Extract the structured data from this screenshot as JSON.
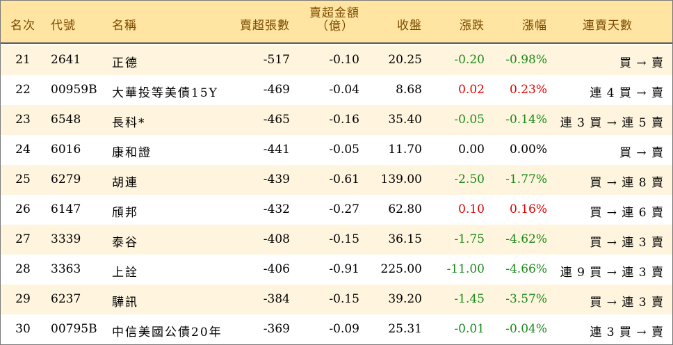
{
  "table": {
    "headers": {
      "rank": "名次",
      "code": "代號",
      "name": "名稱",
      "net_sell_sheets": "賣超張數",
      "net_sell_amount_line1": "賣超金額",
      "net_sell_amount_line2": "（億）",
      "close": "收盤",
      "change": "漲跌",
      "change_pct": "漲幅",
      "consecutive_days": "連賣天數"
    },
    "rows": [
      {
        "rank": "21",
        "code": "2641",
        "name": "正德",
        "sheets": "-517",
        "amount": "-0.10",
        "close": "20.25",
        "change": "-0.20",
        "pct": "-0.98%",
        "trend": "neg",
        "days": "買 → 賣"
      },
      {
        "rank": "22",
        "code": "00959B",
        "name": "大華投等美債15Y",
        "sheets": "-469",
        "amount": "-0.04",
        "close": "8.68",
        "change": "0.02",
        "pct": "0.23%",
        "trend": "pos",
        "days": "連 4 買 → 賣"
      },
      {
        "rank": "23",
        "code": "6548",
        "name": "長科*",
        "sheets": "-465",
        "amount": "-0.16",
        "close": "35.40",
        "change": "-0.05",
        "pct": "-0.14%",
        "trend": "neg",
        "days": "連 3 買 → 連 5 賣"
      },
      {
        "rank": "24",
        "code": "6016",
        "name": "康和證",
        "sheets": "-441",
        "amount": "-0.05",
        "close": "11.70",
        "change": "0.00",
        "pct": "0.00%",
        "trend": "flat",
        "days": "買 → 賣"
      },
      {
        "rank": "25",
        "code": "6279",
        "name": "胡連",
        "sheets": "-439",
        "amount": "-0.61",
        "close": "139.00",
        "change": "-2.50",
        "pct": "-1.77%",
        "trend": "neg",
        "days": "買 → 連 8 賣"
      },
      {
        "rank": "26",
        "code": "6147",
        "name": "頎邦",
        "sheets": "-432",
        "amount": "-0.27",
        "close": "62.80",
        "change": "0.10",
        "pct": "0.16%",
        "trend": "pos",
        "days": "買 → 連 6 賣"
      },
      {
        "rank": "27",
        "code": "3339",
        "name": "泰谷",
        "sheets": "-408",
        "amount": "-0.15",
        "close": "36.15",
        "change": "-1.75",
        "pct": "-4.62%",
        "trend": "neg",
        "days": "買 → 連 3 賣"
      },
      {
        "rank": "28",
        "code": "3363",
        "name": "上詮",
        "sheets": "-406",
        "amount": "-0.91",
        "close": "225.00",
        "change": "-11.00",
        "pct": "-4.66%",
        "trend": "neg",
        "days": "連 9 買 → 連 3 賣"
      },
      {
        "rank": "29",
        "code": "6237",
        "name": "驊訊",
        "sheets": "-384",
        "amount": "-0.15",
        "close": "39.20",
        "change": "-1.45",
        "pct": "-3.57%",
        "trend": "neg",
        "days": "買 → 連 3 賣"
      },
      {
        "rank": "30",
        "code": "00795B",
        "name": "中信美國公債20年",
        "sheets": "-369",
        "amount": "-0.09",
        "close": "25.31",
        "change": "-0.01",
        "pct": "-0.04%",
        "trend": "neg",
        "days": "連 3 買 → 賣"
      }
    ]
  },
  "colors": {
    "header_bg": "#ffe5a1",
    "header_text": "#7a4a00",
    "stripe_bg": "#fff5de",
    "up": "#e00000",
    "down": "#1a8a1a"
  }
}
